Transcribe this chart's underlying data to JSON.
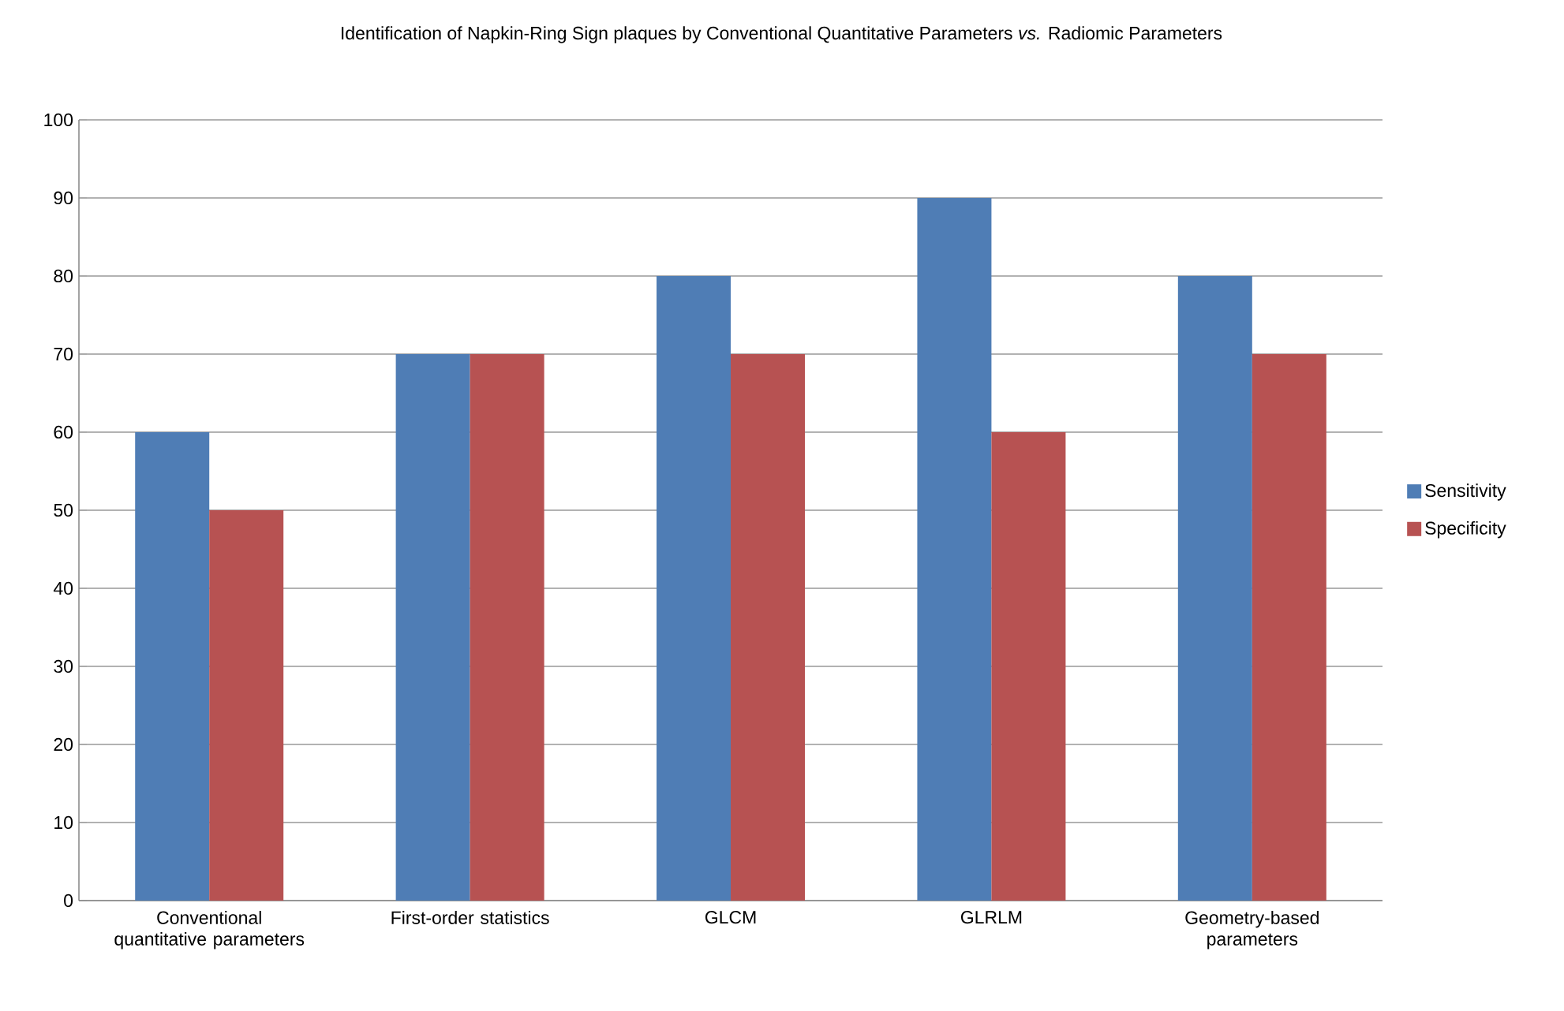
{
  "chart_data": {
    "type": "bar",
    "title": "Identification of Napkin-Ring Sign plaques by Conventional Quantitative Parameters *vs.* Radiomic Parameters",
    "categories": [
      "Conventional quantitative parameters",
      "First-order statistics",
      "GLCM",
      "GLRLM",
      "Geometry-based parameters"
    ],
    "series": [
      {
        "name": "Sensitivity",
        "color": "#4f7db5",
        "values": [
          60,
          70,
          80,
          90,
          80
        ]
      },
      {
        "name": "Specificity",
        "color": "#b75252",
        "values": [
          50,
          70,
          70,
          60,
          70
        ]
      }
    ],
    "ylim": [
      0,
      100
    ],
    "yticks": [
      0,
      10,
      20,
      30,
      40,
      50,
      60,
      70,
      80,
      90,
      100
    ],
    "grid": "y",
    "legend": "right"
  }
}
